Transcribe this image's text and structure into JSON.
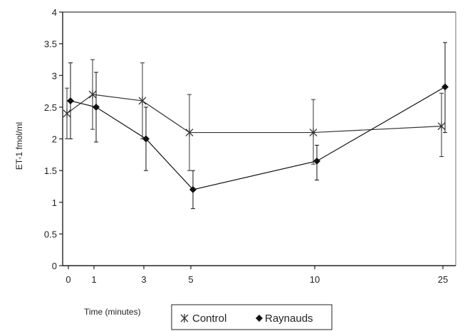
{
  "chart_data": {
    "type": "line",
    "title": "",
    "xlabel": "Time (minutes)",
    "ylabel": "ET-1 fmol/ml",
    "ylim": [
      0,
      4
    ],
    "yticks": [
      "0",
      "0.5",
      "1",
      "1.5",
      "2",
      "2.5",
      "3",
      "3.5",
      "4"
    ],
    "yticks_values": [
      0,
      0.5,
      1,
      1.5,
      2,
      2.5,
      3,
      3.5,
      4
    ],
    "categories": [
      "0",
      "1",
      "3",
      "5",
      "10",
      "25"
    ],
    "grid": false,
    "legend_position": "bottom",
    "series": [
      {
        "name": "Control",
        "marker": "asterisk",
        "color": "#333333",
        "values": [
          2.4,
          2.7,
          2.6,
          2.1,
          2.1,
          2.2
        ],
        "error_low": [
          2.0,
          2.15,
          2.0,
          1.5,
          1.6,
          1.72
        ],
        "error_high": [
          2.8,
          3.25,
          3.2,
          2.7,
          2.62,
          2.72
        ]
      },
      {
        "name": "Raynauds",
        "marker": "diamond",
        "color": "#111111",
        "values": [
          2.6,
          2.5,
          2.0,
          1.2,
          1.65,
          2.82
        ],
        "error_low": [
          2.0,
          1.95,
          1.5,
          0.9,
          1.35,
          2.1
        ],
        "error_high": [
          3.2,
          3.05,
          2.5,
          1.5,
          1.9,
          3.52
        ]
      }
    ]
  }
}
